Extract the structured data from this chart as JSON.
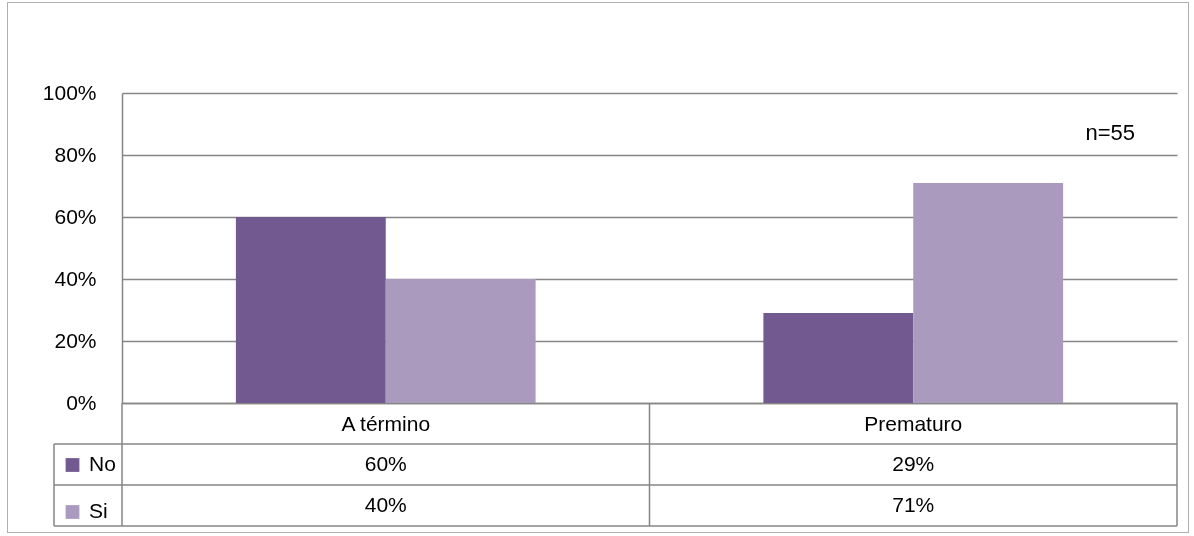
{
  "chart_data": {
    "type": "bar",
    "categories": [
      "A término",
      "Prematuro"
    ],
    "series": [
      {
        "name": "No",
        "color": "#725a90",
        "values": [
          60,
          29
        ],
        "value_labels": [
          "60%",
          "29%"
        ]
      },
      {
        "name": "Si",
        "color": "#a99abe",
        "values": [
          40,
          71
        ],
        "value_labels": [
          "40%",
          "71%"
        ]
      }
    ],
    "ylim": [
      0,
      100
    ],
    "yticks": [
      {
        "value": 0,
        "label": "0%"
      },
      {
        "value": 20,
        "label": "20%"
      },
      {
        "value": 40,
        "label": "40%"
      },
      {
        "value": 60,
        "label": "60%"
      },
      {
        "value": 80,
        "label": "80%"
      },
      {
        "value": 100,
        "label": "100%"
      }
    ],
    "grid": "y",
    "legend": "bottom left",
    "annotations": [
      "n=55"
    ]
  }
}
